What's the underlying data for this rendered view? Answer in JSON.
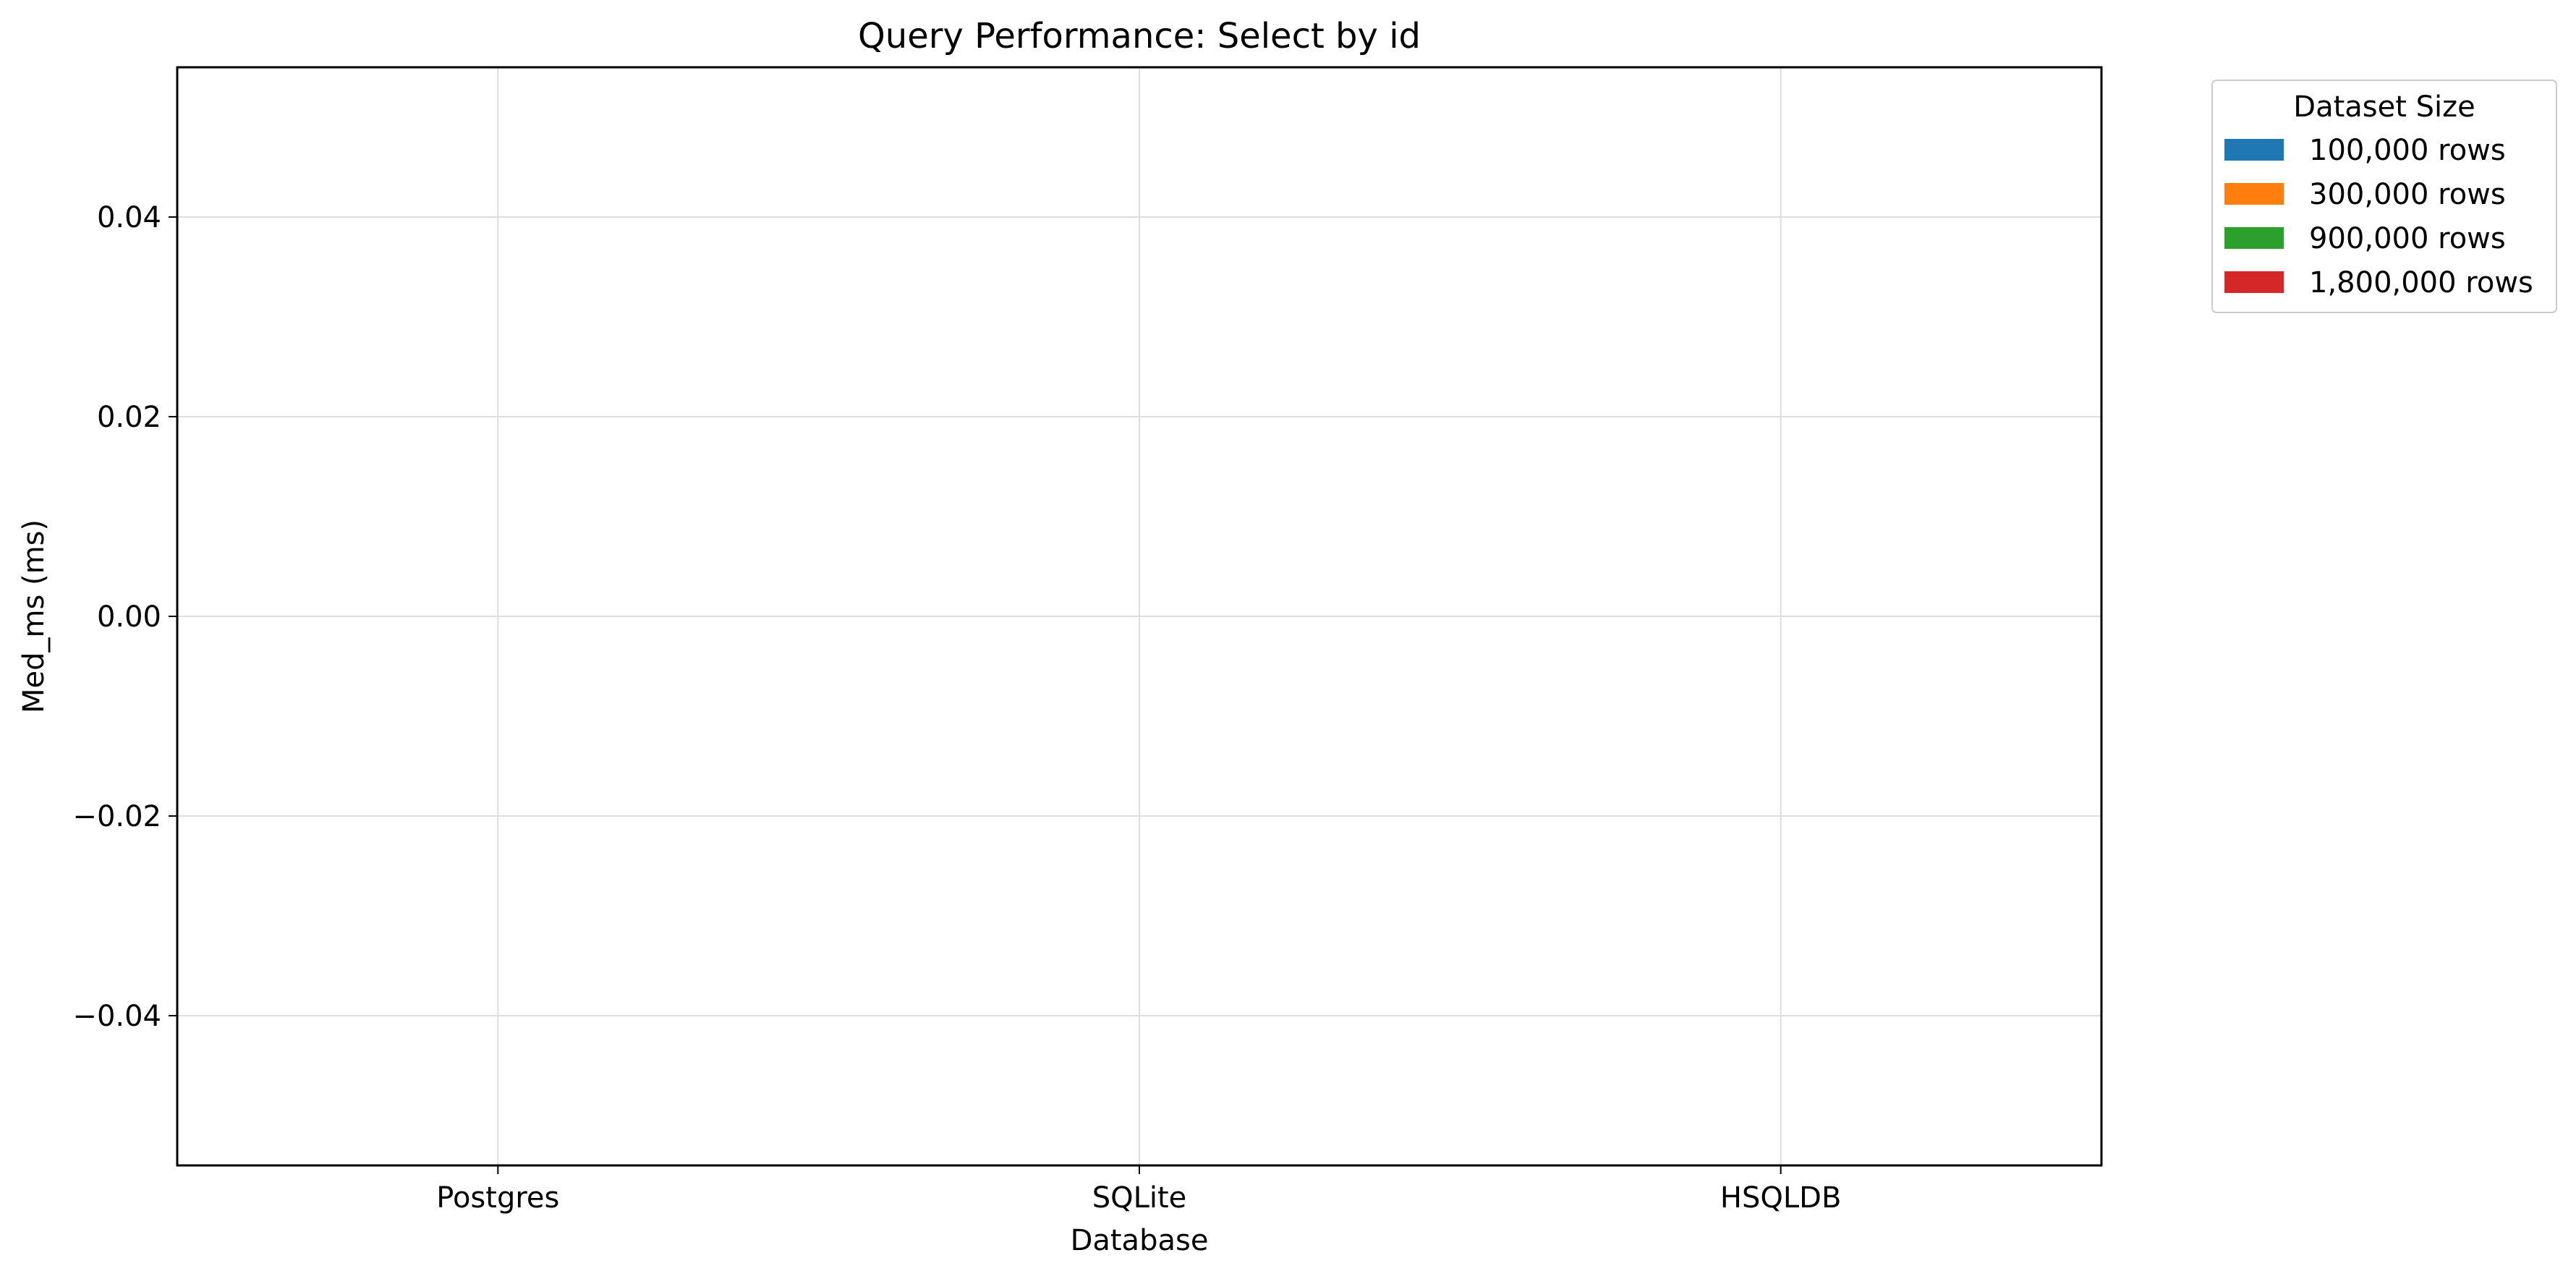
{
  "chart_data": {
    "type": "bar",
    "title": "Query Performance: Select by id",
    "xlabel": "Database",
    "ylabel": "Med_ms (ms)",
    "categories": [
      "Postgres",
      "SQLite",
      "HSQLDB"
    ],
    "series": [
      {
        "name": "100,000 rows",
        "color": "#1f77b4",
        "values": [
          0,
          0,
          0
        ]
      },
      {
        "name": "300,000 rows",
        "color": "#ff7f0e",
        "values": [
          0,
          0,
          0
        ]
      },
      {
        "name": "900,000 rows",
        "color": "#2ca02c",
        "values": [
          0,
          0,
          0
        ]
      },
      {
        "name": "1,800,000 rows",
        "color": "#d62728",
        "values": [
          0,
          0,
          0
        ]
      }
    ],
    "ylim": [
      -0.055,
      0.055
    ],
    "yticks": [
      0.04,
      0.02,
      0.0,
      -0.02,
      -0.04
    ],
    "ytick_labels": [
      "0.04",
      "0.02",
      "0.00",
      "−0.02",
      "−0.04"
    ],
    "grid": true,
    "legend": {
      "title": "Dataset Size",
      "placement": "outside-top-right"
    }
  }
}
